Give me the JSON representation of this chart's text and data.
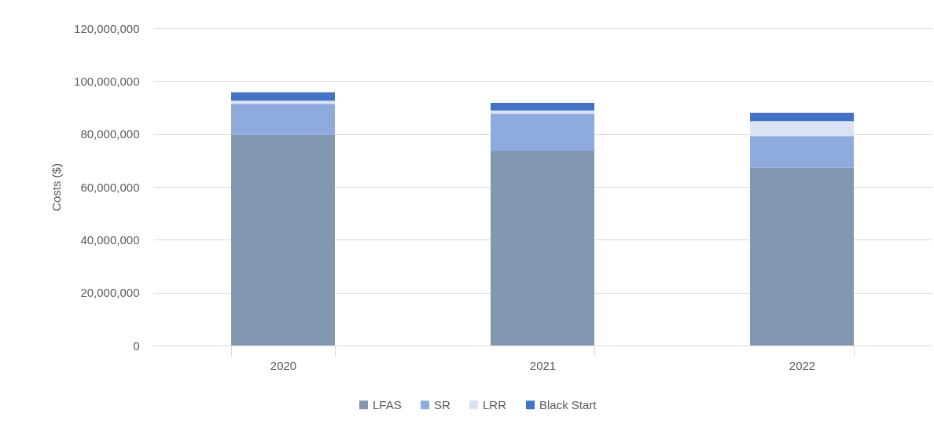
{
  "chart_data": {
    "type": "bar",
    "stacked": true,
    "categories": [
      "2020",
      "2021",
      "2022"
    ],
    "series": [
      {
        "name": "LFAS",
        "color": "#8497b0",
        "values": [
          79700000,
          73700000,
          67200000
        ]
      },
      {
        "name": "SR",
        "color": "#8faadc",
        "values": [
          11700000,
          14100000,
          12000000
        ]
      },
      {
        "name": "LRR",
        "color": "#dae3f3",
        "values": [
          1200000,
          1100000,
          5700000
        ]
      },
      {
        "name": "Black Start",
        "color": "#4472c4",
        "values": [
          3200000,
          2900000,
          3100000
        ]
      }
    ],
    "ylabel": "Costs ($)",
    "ylim": [
      0,
      120000000
    ],
    "yticks": [
      0,
      {
        "value": 20000000,
        "label": "20,000,000"
      },
      {
        "value": 40000000,
        "label": "40,000,000"
      },
      {
        "value": 60000000,
        "label": "60,000,000"
      },
      {
        "value": 80000000,
        "label": "80,000,000"
      },
      {
        "value": 100000000,
        "label": "100,000,000"
      },
      {
        "value": 120000000,
        "label": "120,000,000"
      }
    ],
    "grid": "y",
    "legend": "bottom"
  }
}
